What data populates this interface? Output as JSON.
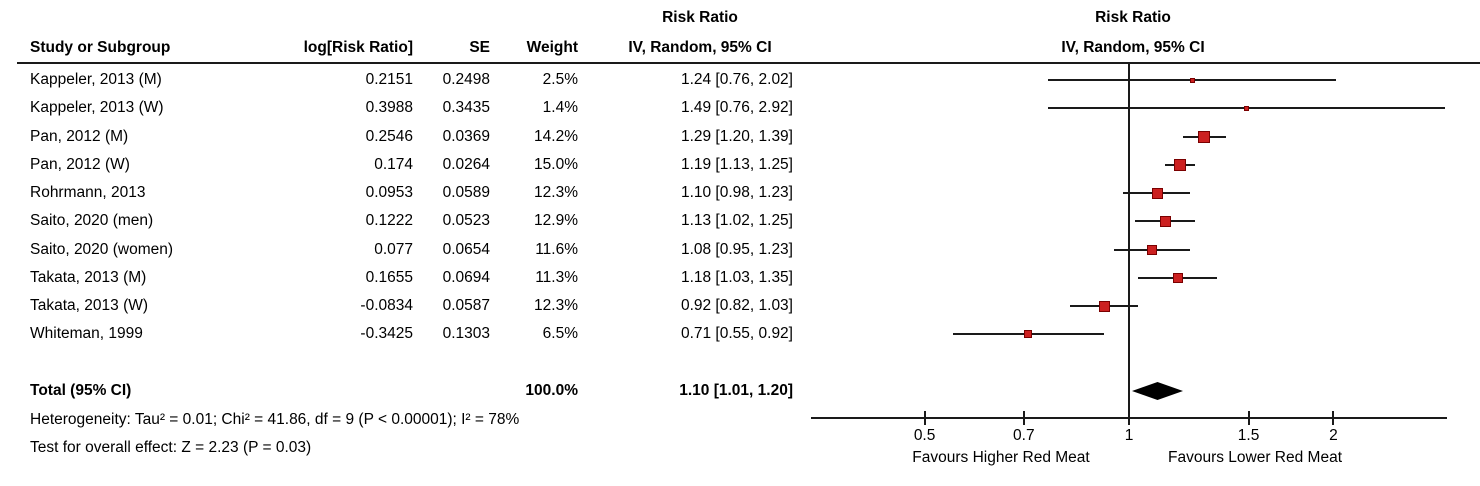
{
  "table_headers": {
    "study": "Study or Subgroup",
    "log_rr": "log[Risk Ratio]",
    "se": "SE",
    "weight": "Weight",
    "effect_top": "Risk Ratio",
    "effect_bottom": "IV, Random, 95% CI"
  },
  "plot_headers": {
    "effect_top": "Risk Ratio",
    "effect_bottom": "IV, Random, 95% CI"
  },
  "chart_data": {
    "type": "forest",
    "scale": "log",
    "studies": [
      {
        "label": "Kappeler, 2013 (M)",
        "log_rr": "0.2151",
        "se": "0.2498",
        "weight": "2.5%",
        "ci_text": "1.24 [0.76, 2.02]",
        "rr": 1.24,
        "lo": 0.76,
        "hi": 2.02,
        "weight_pct": 2.5
      },
      {
        "label": "Kappeler, 2013 (W)",
        "log_rr": "0.3988",
        "se": "0.3435",
        "weight": "1.4%",
        "ci_text": "1.49 [0.76, 2.92]",
        "rr": 1.49,
        "lo": 0.76,
        "hi": 2.92,
        "weight_pct": 1.4
      },
      {
        "label": "Pan, 2012 (M)",
        "log_rr": "0.2546",
        "se": "0.0369",
        "weight": "14.2%",
        "ci_text": "1.29 [1.20, 1.39]",
        "rr": 1.29,
        "lo": 1.2,
        "hi": 1.39,
        "weight_pct": 14.2
      },
      {
        "label": "Pan, 2012 (W)",
        "log_rr": "0.174",
        "se": "0.0264",
        "weight": "15.0%",
        "ci_text": "1.19 [1.13, 1.25]",
        "rr": 1.19,
        "lo": 1.13,
        "hi": 1.25,
        "weight_pct": 15.0
      },
      {
        "label": "Rohrmann, 2013",
        "log_rr": "0.0953",
        "se": "0.0589",
        "weight": "12.3%",
        "ci_text": "1.10 [0.98, 1.23]",
        "rr": 1.1,
        "lo": 0.98,
        "hi": 1.23,
        "weight_pct": 12.3
      },
      {
        "label": "Saito, 2020 (men)",
        "log_rr": "0.1222",
        "se": "0.0523",
        "weight": "12.9%",
        "ci_text": "1.13 [1.02, 1.25]",
        "rr": 1.13,
        "lo": 1.02,
        "hi": 1.25,
        "weight_pct": 12.9
      },
      {
        "label": "Saito, 2020 (women)",
        "log_rr": "0.077",
        "se": "0.0654",
        "weight": "11.6%",
        "ci_text": "1.08 [0.95, 1.23]",
        "rr": 1.08,
        "lo": 0.95,
        "hi": 1.23,
        "weight_pct": 11.6
      },
      {
        "label": "Takata, 2013 (M)",
        "log_rr": "0.1655",
        "se": "0.0694",
        "weight": "11.3%",
        "ci_text": "1.18 [1.03, 1.35]",
        "rr": 1.18,
        "lo": 1.03,
        "hi": 1.35,
        "weight_pct": 11.3
      },
      {
        "label": "Takata, 2013 (W)",
        "log_rr": "-0.0834",
        "se": "0.0587",
        "weight": "12.3%",
        "ci_text": "0.92 [0.82, 1.03]",
        "rr": 0.92,
        "lo": 0.82,
        "hi": 1.03,
        "weight_pct": 12.3
      },
      {
        "label": "Whiteman, 1999",
        "log_rr": "-0.3425",
        "se": "0.1303",
        "weight": "6.5%",
        "ci_text": "0.71 [0.55, 0.92]",
        "rr": 0.71,
        "lo": 0.55,
        "hi": 0.92,
        "weight_pct": 6.5
      }
    ],
    "total": {
      "label": "Total (95% CI)",
      "weight": "100.0%",
      "ci_text": "1.10 [1.01, 1.20]",
      "rr": 1.1,
      "lo": 1.01,
      "hi": 1.2
    },
    "heterogeneity": "Heterogeneity: Tau² = 0.01; Chi² = 41.86, df = 9 (P < 0.00001); I² = 78%",
    "overall_effect": "Test for overall effect: Z = 2.23 (P = 0.03)",
    "axis": {
      "ticks": [
        0.5,
        0.7,
        1,
        1.5,
        2
      ],
      "tick_labels": [
        "0.5",
        "0.7",
        "1",
        "1.5",
        "2"
      ],
      "xmin": 0.34,
      "xmax": 2.94,
      "favours_left": "Favours Higher Red Meat",
      "favours_right": "Favours Lower Red Meat"
    },
    "colors": {
      "marker_fill": "#cc2020",
      "marker_border": "#7a0000",
      "diamond": "#000000",
      "line": "#1a1a1a"
    }
  }
}
